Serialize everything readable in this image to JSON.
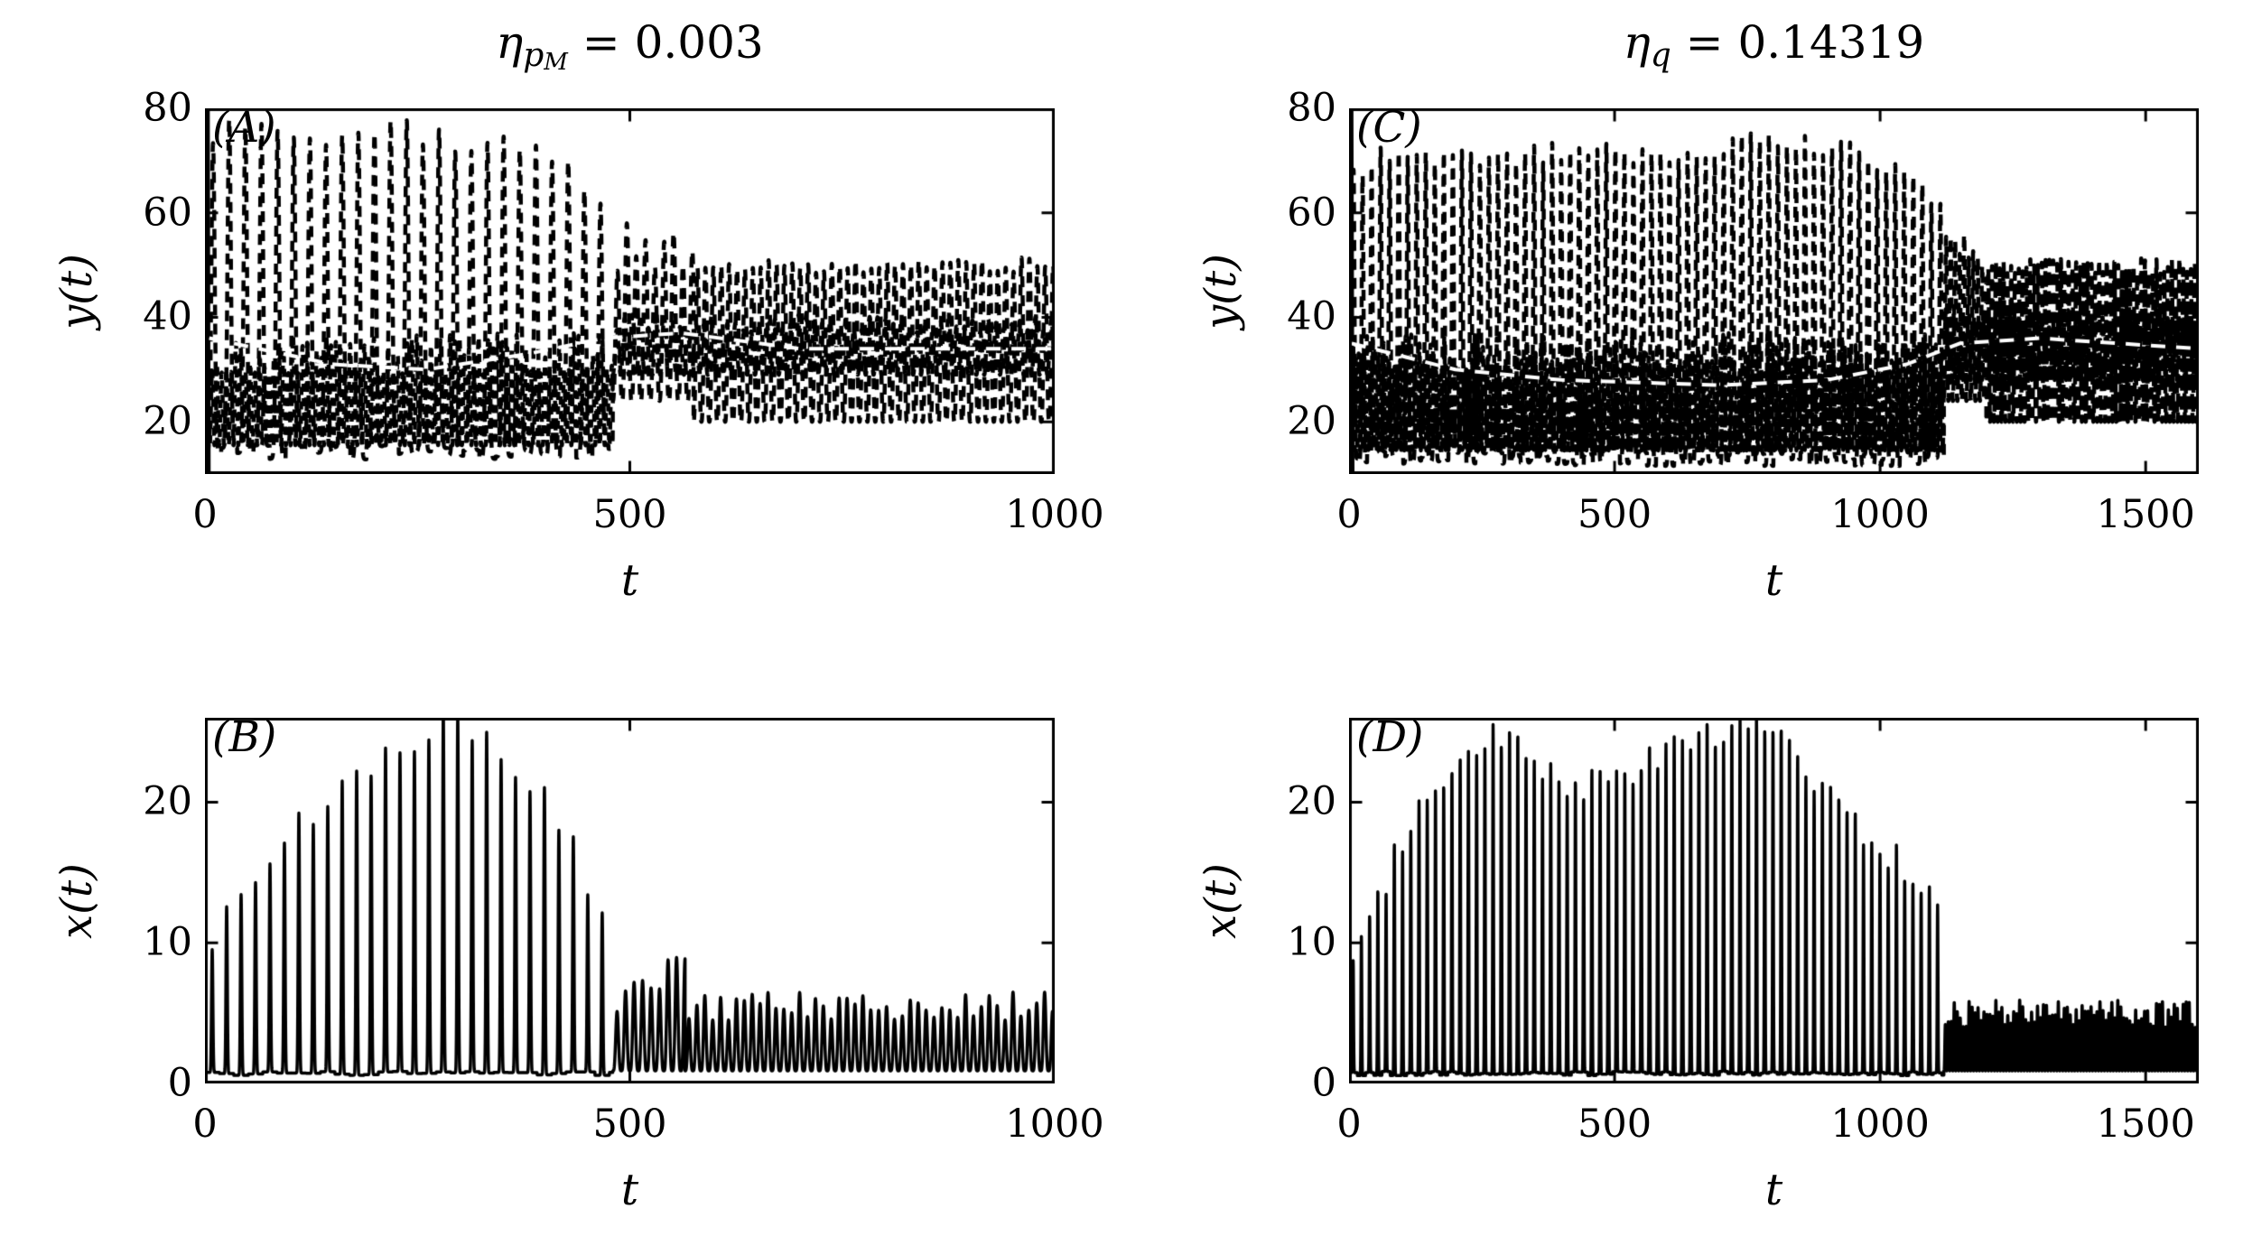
{
  "figure": {
    "background": "#ffffff",
    "axis_color": "#000000",
    "series_color": "#000000",
    "overlay_line_color": "#ffffff"
  },
  "chart_data": {
    "type": "line",
    "description": "Four-panel time-series figure. Top panels show y(t) (dashed black oscillations with a white dashed mean overlay); bottom panels show x(t) (solid black spike trains). Large-amplitude slow oscillations collapse into fast small-amplitude oscillations near t=480 (left column) and t=1120 (right column).",
    "panels": [
      {
        "letter": "(A)",
        "title": {
          "sym": "η",
          "sub": "p",
          "subsub": "M",
          "rest": " = 0.003"
        },
        "xlabel": "t",
        "ylabel": "y(t)",
        "xlim": [
          0,
          1000
        ],
        "ylim": [
          10,
          80
        ],
        "xticks": [
          0,
          500,
          1000
        ],
        "yticks": [
          20,
          40,
          60,
          80
        ],
        "transition_t": 480,
        "series": [
          {
            "name": "initial-transient",
            "color": "#000000",
            "width": 5,
            "dash": [],
            "segments": [
              {
                "type": "polyline",
                "points": [
                  [
                    2,
                    10
                  ],
                  [
                    3,
                    80
                  ],
                  [
                    4,
                    10
                  ]
                ]
              }
            ]
          },
          {
            "name": "y-large-oscillation",
            "color": "#000000",
            "width": 4.5,
            "dash": [
              12,
              9
            ],
            "segments": [
              {
                "type": "pulses",
                "t0": 0,
                "t1": 480,
                "period": 19,
                "base": 14,
                "width": 0.1,
                "peak_jitter": 2,
                "base_jitter": 1.5,
                "envelope": [
                  [
                    0,
                    72
                  ],
                  [
                    30,
                    77
                  ],
                  [
                    120,
                    74
                  ],
                  [
                    210,
                    77
                  ],
                  [
                    300,
                    73
                  ],
                  [
                    390,
                    74
                  ],
                  [
                    440,
                    68
                  ],
                  [
                    480,
                    56
                  ]
                ]
              },
              {
                "type": "osc",
                "t0": 480,
                "t1": 575,
                "min": 24,
                "max": 54,
                "period": 11,
                "amp_jitter": 6,
                "sharp": 1.3
              },
              {
                "type": "osc",
                "t0": 575,
                "t1": 1000,
                "min": 20,
                "max": 50,
                "period": 9.3,
                "amp_jitter": 1.5,
                "sharp": 1.3
              }
            ]
          },
          {
            "name": "y-lower-band",
            "color": "#000000",
            "width": 4.5,
            "dash": [
              9,
              7
            ],
            "segments": [
              {
                "type": "osc",
                "t0": 0,
                "t1": 480,
                "min": 15.5,
                "max": 33,
                "period": 5.6,
                "amp_jitter": 4,
                "sharp": 1
              },
              {
                "type": "osc",
                "t0": 480,
                "t1": 1000,
                "min": 29,
                "max": 39,
                "period": 9.3,
                "amp_jitter": 2,
                "sharp": 1
              }
            ]
          },
          {
            "name": "mean-overlay",
            "color": "#ffffff",
            "width": 4,
            "dash": [
              16,
              12
            ],
            "segments": [
              {
                "type": "polyline",
                "points": [
                  [
                    5,
                    36
                  ],
                  [
                    150,
                    31
                  ],
                  [
                    260,
                    30
                  ],
                  [
                    380,
                    33
                  ],
                  [
                    470,
                    36
                  ],
                  [
                    560,
                    37
                  ],
                  [
                    700,
                    34
                  ],
                  [
                    1000,
                    34
                  ]
                ]
              }
            ]
          }
        ]
      },
      {
        "letter": "(C)",
        "title": {
          "sym": "η",
          "sub": "q",
          "subsub": "",
          "rest": " = 0.14319"
        },
        "xlabel": "t",
        "ylabel": "y(t)",
        "xlim": [
          0,
          1600
        ],
        "ylim": [
          10,
          80
        ],
        "xticks": [
          0,
          500,
          1000,
          1500
        ],
        "yticks": [
          20,
          40,
          60,
          80
        ],
        "transition_t": 1120,
        "series": [
          {
            "name": "initial-transient",
            "color": "#000000",
            "width": 5,
            "dash": [],
            "segments": [
              {
                "type": "polyline",
                "points": [
                  [
                    3,
                    10
                  ],
                  [
                    4,
                    80
                  ],
                  [
                    6,
                    10
                  ]
                ]
              }
            ]
          },
          {
            "name": "y-large-oscillation",
            "color": "#000000",
            "width": 4.5,
            "dash": [
              12,
              9
            ],
            "segments": [
              {
                "type": "pulses",
                "t0": 0,
                "t1": 1120,
                "period": 17,
                "base": 13,
                "width": 0.1,
                "peak_jitter": 2,
                "base_jitter": 1.5,
                "envelope": [
                  [
                    0,
                    66
                  ],
                  [
                    60,
                    72
                  ],
                  [
                    200,
                    70
                  ],
                  [
                    400,
                    72
                  ],
                  [
                    600,
                    71
                  ],
                  [
                    750,
                    74
                  ],
                  [
                    900,
                    73
                  ],
                  [
                    1000,
                    70
                  ],
                  [
                    1060,
                    66
                  ],
                  [
                    1120,
                    60
                  ]
                ]
              },
              {
                "type": "osc",
                "t0": 1120,
                "t1": 1200,
                "min": 24,
                "max": 52,
                "period": 8.5,
                "amp_jitter": 5,
                "sharp": 1.3
              },
              {
                "type": "osc",
                "t0": 1200,
                "t1": 1600,
                "min": 20,
                "max": 50,
                "period": 7.2,
                "amp_jitter": 1.5,
                "sharp": 1.3
              }
            ]
          },
          {
            "name": "y-lower-band",
            "color": "#000000",
            "width": 4.5,
            "dash": [
              9,
              7
            ],
            "segments": [
              {
                "type": "osc",
                "t0": 0,
                "t1": 1120,
                "min": 14.5,
                "max": 33,
                "period": 5.2,
                "amp_jitter": 4,
                "sharp": 1
              },
              {
                "type": "osc",
                "t0": 1120,
                "t1": 1600,
                "min": 28,
                "max": 40,
                "period": 7.2,
                "amp_jitter": 2,
                "sharp": 1
              }
            ]
          },
          {
            "name": "mean-overlay",
            "color": "#ffffff",
            "width": 4,
            "dash": [
              16,
              12
            ],
            "segments": [
              {
                "type": "polyline",
                "points": [
                  [
                    5,
                    35
                  ],
                  [
                    200,
                    30
                  ],
                  [
                    400,
                    28
                  ],
                  [
                    700,
                    27
                  ],
                  [
                    900,
                    28
                  ],
                  [
                    1050,
                    31
                  ],
                  [
                    1150,
                    35
                  ],
                  [
                    1300,
                    36
                  ],
                  [
                    1600,
                    34
                  ]
                ]
              }
            ]
          }
        ]
      },
      {
        "letter": "(B)",
        "xlabel": "t",
        "ylabel": "x(t)",
        "xlim": [
          0,
          1000
        ],
        "ylim": [
          0,
          26
        ],
        "xticks": [
          0,
          500,
          1000
        ],
        "yticks": [
          0,
          10,
          20
        ],
        "transition_t": 480,
        "series": [
          {
            "name": "x-spike-train",
            "color": "#000000",
            "width": 3.5,
            "dash": [],
            "segments": [
              {
                "type": "pulses",
                "t0": 0,
                "t1": 480,
                "period": 17,
                "base": 0.7,
                "width": 0.045,
                "peak_jitter": 1.3,
                "base_jitter": 0.15,
                "envelope": [
                  [
                    0,
                    9
                  ],
                  [
                    30,
                    13
                  ],
                  [
                    80,
                    16
                  ],
                  [
                    140,
                    20
                  ],
                  [
                    200,
                    23
                  ],
                  [
                    260,
                    25
                  ],
                  [
                    320,
                    25
                  ],
                  [
                    380,
                    22
                  ],
                  [
                    430,
                    17
                  ],
                  [
                    480,
                    11
                  ]
                ]
              },
              {
                "type": "osc",
                "t0": 480,
                "t1": 565,
                "min": 0.9,
                "max": 7,
                "period": 10,
                "amp_jitter": 2,
                "sharp": 2
              },
              {
                "type": "osc",
                "t0": 565,
                "t1": 1000,
                "min": 0.9,
                "max": 5.5,
                "period": 9.3,
                "amp_jitter": 1,
                "sharp": 2
              }
            ]
          }
        ]
      },
      {
        "letter": "(D)",
        "xlabel": "t",
        "ylabel": "x(t)",
        "xlim": [
          0,
          1600
        ],
        "ylim": [
          0,
          26
        ],
        "xticks": [
          0,
          500,
          1000,
          1500
        ],
        "yticks": [
          0,
          10,
          20
        ],
        "transition_t": 1120,
        "series": [
          {
            "name": "x-spike-train",
            "color": "#000000",
            "width": 3.5,
            "dash": [],
            "segments": [
              {
                "type": "pulses",
                "t0": 0,
                "t1": 1120,
                "period": 15.5,
                "base": 0.7,
                "width": 0.045,
                "peak_jitter": 1.2,
                "base_jitter": 0.15,
                "envelope": [
                  [
                    0,
                    9
                  ],
                  [
                    40,
                    12
                  ],
                  [
                    120,
                    19
                  ],
                  [
                    200,
                    23
                  ],
                  [
                    270,
                    25
                  ],
                  [
                    350,
                    23
                  ],
                  [
                    430,
                    21
                  ],
                  [
                    520,
                    22
                  ],
                  [
                    600,
                    24
                  ],
                  [
                    700,
                    25
                  ],
                  [
                    780,
                    26
                  ],
                  [
                    850,
                    23
                  ],
                  [
                    920,
                    20
                  ],
                  [
                    1000,
                    17
                  ],
                  [
                    1060,
                    15
                  ],
                  [
                    1120,
                    12
                  ]
                ]
              },
              {
                "type": "osc",
                "t0": 1120,
                "t1": 1600,
                "min": 0.9,
                "max": 5,
                "period": 5.6,
                "amp_jitter": 1,
                "sharp": 2
              }
            ]
          }
        ]
      }
    ]
  }
}
